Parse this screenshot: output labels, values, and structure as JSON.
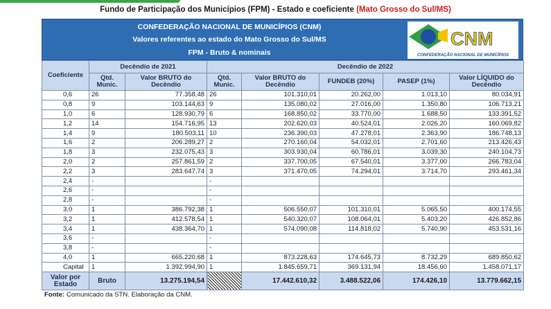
{
  "header": {
    "title": "Fundo de Participação dos Municípios (FPM) - Estado e coeficiente",
    "title_highlight": "(Mato Grosso do Sul/MS)"
  },
  "banner": {
    "lines": [
      "CONFEDERAÇÃO NACIONAL DE MUNICÍPIOS (CNM)",
      "Valores referentes ao estado do Mato Grosso do Sul/MS",
      "FPM - Bruto & nominais"
    ],
    "logo": {
      "acronym": "CNM",
      "name": "CONFEDERAÇÃO NACIONAL DE MUNICÍPIOS"
    }
  },
  "table": {
    "coef_header": "Coeficiente",
    "groups": [
      "Decêndio de 2021",
      "Decêndio de 2022"
    ],
    "columns": [
      "Qtd. Munic.",
      "Valor BRUTO do Decêndio",
      "Qtd. Munic.",
      "Valor BRUTO do Decêndio",
      "FUNDEB (20%)",
      "PASEP (1%)",
      "Valor LÍQUIDO do Decêndio"
    ],
    "rows": [
      [
        "0,6",
        "26",
        "77.358,48",
        "26",
        "101.310,01",
        "20.262,00",
        "1.013,10",
        "80.034,91"
      ],
      [
        "0,8",
        "9",
        "103.144,63",
        "9",
        "135.080,02",
        "27.016,00",
        "1.350,80",
        "106.713,21"
      ],
      [
        "1,0",
        "6",
        "128.930,79",
        "6",
        "168.850,02",
        "33.770,00",
        "1.688,50",
        "133.391,52"
      ],
      [
        "1,2",
        "14",
        "154.716,95",
        "13",
        "202.620,03",
        "40.524,01",
        "2.026,20",
        "160.069,82"
      ],
      [
        "1,4",
        "9",
        "180.503,11",
        "10",
        "236.390,03",
        "47.278,01",
        "2.363,90",
        "186.748,13"
      ],
      [
        "1,6",
        "2",
        "206.289,27",
        "2",
        "270.160,04",
        "54.032,01",
        "2.701,60",
        "213.426,43"
      ],
      [
        "1,8",
        "3",
        "232.075,43",
        "3",
        "303.930,04",
        "60.786,01",
        "3.039,30",
        "240.104,73"
      ],
      [
        "2,0",
        "2",
        "257.861,59",
        "2",
        "337.700,05",
        "67.540,01",
        "3.377,00",
        "266.783,04"
      ],
      [
        "2,2",
        "3",
        "283.647,74",
        "3",
        "371.470,05",
        "74.294,01",
        "3.714,70",
        "293.461,34"
      ],
      [
        "2,4",
        "-",
        null,
        "-",
        null,
        null,
        null,
        null
      ],
      [
        "2,6",
        "-",
        null,
        "-",
        null,
        null,
        null,
        null
      ],
      [
        "2,8",
        "-",
        null,
        "-",
        null,
        null,
        null,
        null
      ],
      [
        "3,0",
        "1",
        "386.792,38",
        "1",
        "506.550,07",
        "101.310,01",
        "5.065,50",
        "400.174,55"
      ],
      [
        "3,2",
        "1",
        "412.578,54",
        "1",
        "540.320,07",
        "108.064,01",
        "5.403,20",
        "426.852,86"
      ],
      [
        "3,4",
        "1",
        "438.364,70",
        "1",
        "574.090,08",
        "114.818,02",
        "5.740,90",
        "453.531,16"
      ],
      [
        "3,6",
        "-",
        null,
        "-",
        null,
        null,
        null,
        null
      ],
      [
        "3,8",
        "-",
        null,
        "-",
        null,
        null,
        null,
        null
      ],
      [
        "4,0",
        "1",
        "665.220,68",
        "1",
        "873.228,63",
        "174.645,73",
        "8.732,29",
        "689.850,62"
      ],
      [
        "Capital",
        "1",
        "1.392.994,90",
        "1",
        "1.845.659,71",
        "369.131,94",
        "18.456,60",
        "1.458.071,17"
      ]
    ],
    "total": [
      "Valor por Estado",
      "Bruto",
      "13.275.194,54",
      null,
      "17.442.610,32",
      "3.488.522,06",
      "174.426,10",
      "13.779.662,15"
    ]
  },
  "footer": {
    "label": "Fonte:",
    "text": "Comunicado da STN. Elaboração da CNM."
  }
}
